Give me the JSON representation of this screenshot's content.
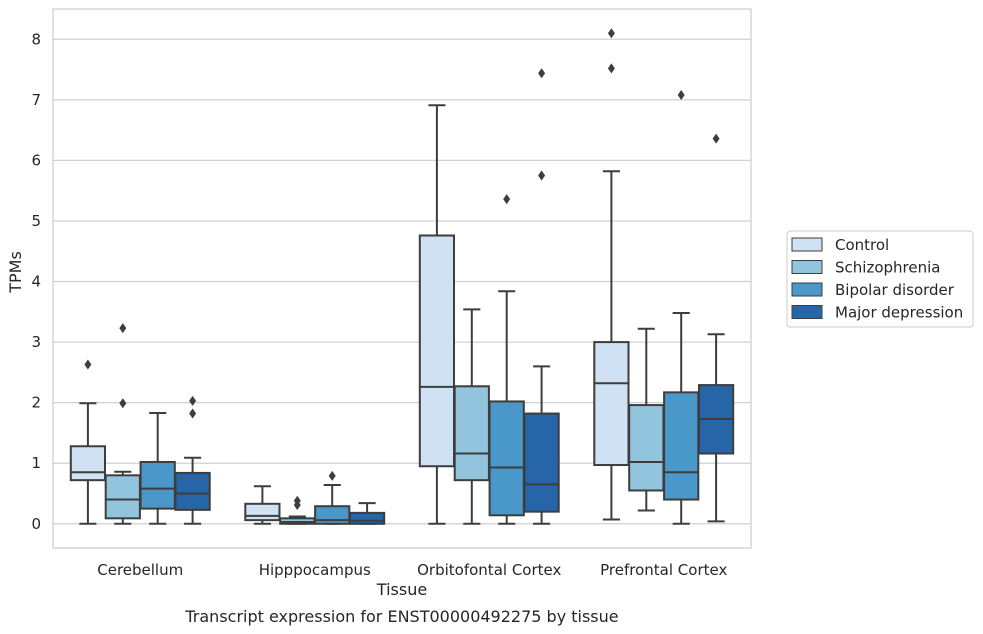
{
  "chart_data": {
    "type": "boxplot",
    "caption": "Transcript expression for ENST00000492275 by tissue",
    "xlabel": "Tissue",
    "ylabel": "TPMs",
    "ylim": [
      -0.4,
      8.5
    ],
    "yticks": [
      "0",
      "1",
      "2",
      "3",
      "4",
      "5",
      "6",
      "7",
      "8"
    ],
    "grid": "horizontal",
    "legend_position": "right",
    "categories": [
      "Cerebellum",
      "Hipppocampus",
      "Orbitofontal Cortex",
      "Prefrontal Cortex"
    ],
    "series": [
      {
        "name": "Control",
        "color": "#cfe1f2",
        "boxes": [
          {
            "whislo": 0.0,
            "q1": 0.72,
            "med": 0.85,
            "q3": 1.28,
            "whishi": 1.99,
            "fliers": [
              2.63
            ]
          },
          {
            "whislo": 0.0,
            "q1": 0.06,
            "med": 0.13,
            "q3": 0.33,
            "whishi": 0.62,
            "fliers": []
          },
          {
            "whislo": 0.0,
            "q1": 0.95,
            "med": 2.26,
            "q3": 4.76,
            "whishi": 6.91,
            "fliers": []
          },
          {
            "whislo": 0.07,
            "q1": 0.97,
            "med": 2.32,
            "q3": 3.0,
            "whishi": 5.82,
            "fliers": [
              7.52,
              8.1
            ]
          }
        ]
      },
      {
        "name": "Schizophrenia",
        "color": "#93c4de",
        "boxes": [
          {
            "whislo": 0.0,
            "q1": 0.09,
            "med": 0.4,
            "q3": 0.8,
            "whishi": 0.86,
            "fliers": [
              1.99,
              3.23
            ]
          },
          {
            "whislo": 0.0,
            "q1": 0.0,
            "med": 0.03,
            "q3": 0.09,
            "whishi": 0.12,
            "fliers": [
              0.31,
              0.38
            ]
          },
          {
            "whislo": 0.0,
            "q1": 0.72,
            "med": 1.16,
            "q3": 2.27,
            "whishi": 3.54,
            "fliers": []
          },
          {
            "whislo": 0.22,
            "q1": 0.55,
            "med": 1.02,
            "q3": 1.96,
            "whishi": 3.22,
            "fliers": []
          }
        ]
      },
      {
        "name": "Bipolar disorder",
        "color": "#4a98c9",
        "boxes": [
          {
            "whislo": 0.0,
            "q1": 0.25,
            "med": 0.58,
            "q3": 1.02,
            "whishi": 1.83,
            "fliers": []
          },
          {
            "whislo": 0.0,
            "q1": 0.0,
            "med": 0.06,
            "q3": 0.29,
            "whishi": 0.64,
            "fliers": [
              0.79
            ]
          },
          {
            "whislo": 0.0,
            "q1": 0.14,
            "med": 0.93,
            "q3": 2.02,
            "whishi": 3.84,
            "fliers": [
              5.36
            ]
          },
          {
            "whislo": 0.0,
            "q1": 0.4,
            "med": 0.85,
            "q3": 2.17,
            "whishi": 3.48,
            "fliers": [
              7.08
            ]
          }
        ]
      },
      {
        "name": "Major depression",
        "color": "#2666a8",
        "boxes": [
          {
            "whislo": 0.0,
            "q1": 0.23,
            "med": 0.5,
            "q3": 0.84,
            "whishi": 1.09,
            "fliers": [
              1.82,
              2.03
            ]
          },
          {
            "whislo": 0.0,
            "q1": 0.0,
            "med": 0.05,
            "q3": 0.18,
            "whishi": 0.34,
            "fliers": []
          },
          {
            "whislo": 0.0,
            "q1": 0.2,
            "med": 0.65,
            "q3": 1.82,
            "whishi": 2.6,
            "fliers": [
              5.75,
              7.44
            ]
          },
          {
            "whislo": 0.04,
            "q1": 1.16,
            "med": 1.73,
            "q3": 2.29,
            "whishi": 3.13,
            "fliers": [
              6.36
            ]
          }
        ]
      }
    ]
  }
}
